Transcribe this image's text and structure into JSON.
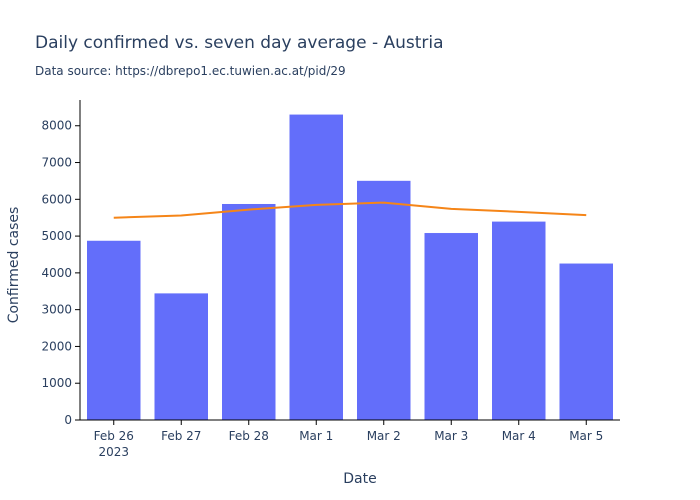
{
  "chart_data": {
    "type": "bar",
    "title": "Daily confirmed vs. seven day average - Austria",
    "subtitle": "Data source: https://dbrepo1.ec.tuwien.ac.at/pid/29",
    "xlabel": "Date",
    "ylabel": "Confirmed cases",
    "categories": [
      "Feb 26",
      "Feb 27",
      "Feb 28",
      "Mar 1",
      "Mar 2",
      "Mar 3",
      "Mar 4",
      "Mar 5"
    ],
    "year_label": "2023",
    "ylim": [
      0,
      8700
    ],
    "yticks": [
      0,
      1000,
      2000,
      3000,
      4000,
      5000,
      6000,
      7000,
      8000
    ],
    "grid": false,
    "series": [
      {
        "type": "bar",
        "color": "#636efa",
        "values": [
          4880,
          3450,
          5880,
          8310,
          6510,
          5090,
          5400,
          4260
        ]
      },
      {
        "type": "line",
        "color": "#f58518",
        "values": [
          5500,
          5560,
          5720,
          5850,
          5910,
          5740,
          5660,
          5570
        ]
      }
    ]
  }
}
